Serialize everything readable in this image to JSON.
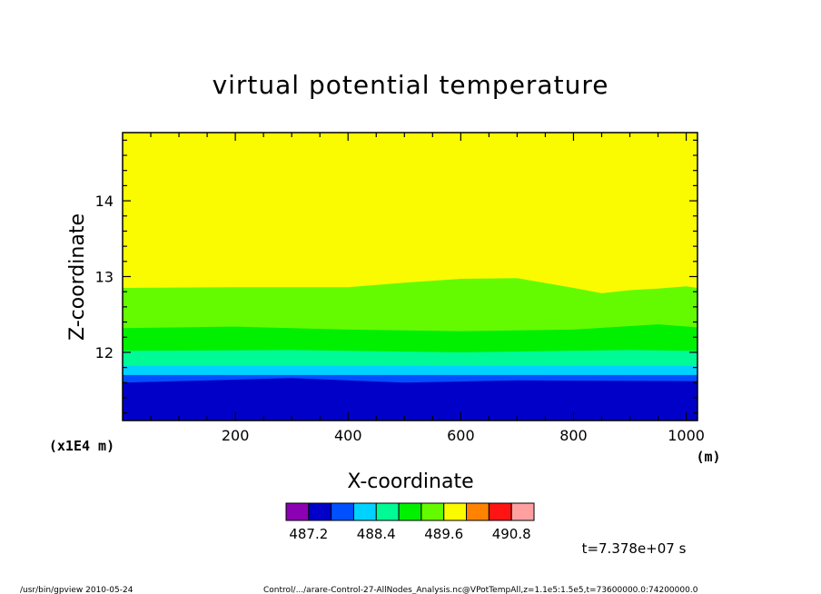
{
  "chart_data": {
    "type": "heatmap",
    "title": "virtual potential temperature",
    "xlabel": "X-coordinate",
    "ylabel": "Z-coordinate",
    "x_unit": "(m)",
    "y_unit": "(x1E4 m)",
    "xlim": [
      0,
      1020
    ],
    "ylim": [
      11.1,
      14.9
    ],
    "x_ticks": [
      {
        "value": 200,
        "label": "200"
      },
      {
        "value": 400,
        "label": "400"
      },
      {
        "value": 600,
        "label": "600"
      },
      {
        "value": 800,
        "label": "800"
      },
      {
        "value": 1000,
        "label": "1000"
      }
    ],
    "y_ticks": [
      {
        "value": 12,
        "label": "12"
      },
      {
        "value": 13,
        "label": "13"
      },
      {
        "value": 14,
        "label": "14"
      }
    ],
    "bands": [
      {
        "value": 487.8,
        "color": "#0000c8",
        "top": [
          [
            0,
            11.6
          ],
          [
            300,
            11.66
          ],
          [
            500,
            11.6
          ],
          [
            700,
            11.63
          ],
          [
            1020,
            11.62
          ]
        ]
      },
      {
        "value": 488.1,
        "color": "#0050ff",
        "top": [
          [
            0,
            11.7
          ],
          [
            1020,
            11.7
          ]
        ]
      },
      {
        "value": 488.4,
        "color": "#00d2ff",
        "top": [
          [
            0,
            11.82
          ],
          [
            1020,
            11.82
          ]
        ]
      },
      {
        "value": 488.7,
        "color": "#00fa96",
        "top": [
          [
            0,
            12.02
          ],
          [
            300,
            12.03
          ],
          [
            600,
            12.0
          ],
          [
            900,
            12.03
          ],
          [
            1020,
            12.02
          ]
        ]
      },
      {
        "value": 489.0,
        "color": "#00f000",
        "top": [
          [
            0,
            12.32
          ],
          [
            200,
            12.34
          ],
          [
            400,
            12.3
          ],
          [
            600,
            12.28
          ],
          [
            800,
            12.3
          ],
          [
            950,
            12.37
          ],
          [
            1020,
            12.33
          ]
        ]
      },
      {
        "value": 489.3,
        "color": "#64fa00",
        "top": [
          [
            0,
            12.85
          ],
          [
            200,
            12.86
          ],
          [
            400,
            12.86
          ],
          [
            500,
            12.92
          ],
          [
            600,
            12.97
          ],
          [
            700,
            12.98
          ],
          [
            800,
            12.85
          ],
          [
            850,
            12.78
          ],
          [
            900,
            12.82
          ],
          [
            950,
            12.84
          ],
          [
            1000,
            12.87
          ],
          [
            1020,
            12.85
          ]
        ]
      }
    ],
    "background_band": {
      "value": 489.6,
      "color": "#fafa00"
    },
    "colorbar": {
      "colors": [
        "#8c00b4",
        "#0000c8",
        "#0050ff",
        "#00d2ff",
        "#00fa96",
        "#00f000",
        "#64fa00",
        "#fafa00",
        "#ff8200",
        "#ff1414",
        "#ffa0a0"
      ],
      "labels": [
        "487.2",
        "488.4",
        "489.6",
        "490.8"
      ]
    },
    "time_label": "t=7.378e+07 s"
  },
  "footer": {
    "left": "/usr/bin/gpview  2010-05-24",
    "right": "Control/.../arare-Control-27-AllNodes_Analysis.nc@VPotTempAll,z=1.1e5:1.5e5,t=73600000.0:74200000.0"
  }
}
